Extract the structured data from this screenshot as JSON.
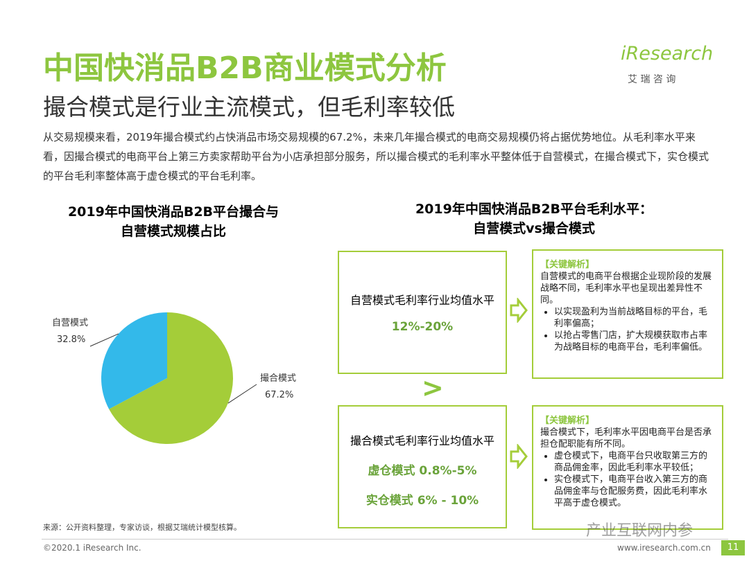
{
  "header": {
    "title": "中国快消品B2B商业模式分析",
    "subtitle": "撮合模式是行业主流模式，但毛利率较低",
    "logo": "iResearch",
    "logo_sub": "艾 瑞 咨 询"
  },
  "intro": "从交易规模来看，2019年撮合模式约占快消品市场交易规模的67.2%，未来几年撮合模式的电商交易规模仍将占据优势地位。从毛利率水平来看，因撮合模式的电商平台上第三方卖家帮助平台为小店承担部分服务，所以撮合模式的毛利率水平整体低于自营模式，在撮合模式下，实仓模式的平台毛利率整体高于虚仓模式的平台毛利率。",
  "chart_data": {
    "type": "pie",
    "title": [
      "2019年中国快消品B2B平台撮合与",
      "自营模式规模占比"
    ],
    "categories": [
      "自营模式",
      "撮合模式"
    ],
    "values": [
      32.8,
      67.2
    ],
    "value_labels": [
      "32.8%",
      "67.2%"
    ],
    "colors": [
      "#33b9ea",
      "#a4cd39"
    ]
  },
  "comparison": {
    "title": [
      "2019年中国快消品B2B平台毛利水平：",
      "自营模式vs撮合模式"
    ],
    "comparator": ">",
    "blocks": [
      {
        "label": "自营模式毛利率行业均值水平",
        "values": [
          "12%-20%"
        ],
        "analysis": {
          "heading": "【关键解析】",
          "text": "自营模式的电商平台根据企业现阶段的发展战略不同，毛利率水平也呈现出差异性不同。",
          "bullets": [
            "以实现盈利为当前战略目标的平台，毛利率偏高；",
            "以抢占零售门店，扩大规模获取市占率为战略目标的电商平台，毛利率偏低。"
          ]
        }
      },
      {
        "label": "撮合模式毛利率行业均值水平",
        "values": [
          "虚仓模式 0.8%-5%",
          "实仓模式  6% - 10%"
        ],
        "analysis": {
          "heading": "【关键解析】",
          "text": "撮合模式下，毛利率水平因电商平台是否承担仓配职能有所不同。",
          "bullets": [
            "虚仓模式下，电商平台只收取第三方的商品佣金率，因此毛利率水平较低；",
            "实仓模式下，电商平台收入第三方的商品佣金率与仓配服务费，因此毛利率水平高于虚仓模式。"
          ]
        }
      }
    ]
  },
  "footer": {
    "source": "来源：公开资料整理，专家访谈，根据艾瑞统计模型核算。",
    "copyright": "©2020.1 iResearch Inc.",
    "url": "www.iresearch.com.cn",
    "page": "11",
    "watermark": "产业互联网内参"
  }
}
